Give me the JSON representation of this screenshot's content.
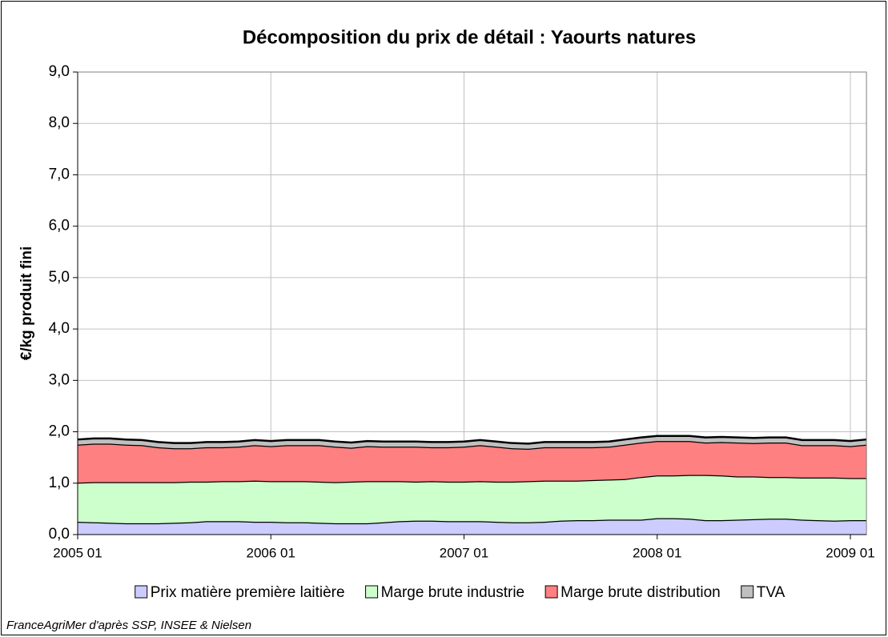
{
  "chart_data": {
    "type": "stacked_area",
    "title": "Décomposition du prix de détail : Yaourts natures",
    "y_label": "€/kg produit fini",
    "source": "FranceAgriMer d'après SSP, INSEE & Nielsen",
    "categories": [
      "2005 01",
      null,
      null,
      null,
      null,
      null,
      null,
      null,
      null,
      null,
      null,
      null,
      "2006 01",
      null,
      null,
      null,
      null,
      null,
      null,
      null,
      null,
      null,
      null,
      null,
      "2007 01",
      null,
      null,
      null,
      null,
      null,
      null,
      null,
      null,
      null,
      null,
      null,
      "2008 01",
      null,
      null,
      null,
      null,
      null,
      null,
      null,
      null,
      null,
      null,
      null,
      "2009 01",
      null
    ],
    "series": [
      {
        "name": "Prix matière première laitière",
        "color": "#ccccff",
        "values": [
          0.25,
          0.24,
          0.23,
          0.22,
          0.22,
          0.22,
          0.23,
          0.24,
          0.26,
          0.26,
          0.26,
          0.25,
          0.25,
          0.24,
          0.24,
          0.23,
          0.22,
          0.22,
          0.22,
          0.24,
          0.26,
          0.27,
          0.27,
          0.26,
          0.26,
          0.26,
          0.25,
          0.24,
          0.24,
          0.25,
          0.27,
          0.28,
          0.28,
          0.29,
          0.29,
          0.29,
          0.32,
          0.32,
          0.31,
          0.28,
          0.28,
          0.29,
          0.3,
          0.31,
          0.31,
          0.29,
          0.28,
          0.27,
          0.28,
          0.28
        ]
      },
      {
        "name": "Marge brute industrie",
        "color": "#ccffcc",
        "values": [
          0.76,
          0.78,
          0.79,
          0.8,
          0.8,
          0.8,
          0.79,
          0.79,
          0.77,
          0.78,
          0.78,
          0.8,
          0.79,
          0.8,
          0.8,
          0.8,
          0.8,
          0.81,
          0.82,
          0.8,
          0.78,
          0.76,
          0.77,
          0.77,
          0.77,
          0.78,
          0.78,
          0.79,
          0.8,
          0.8,
          0.78,
          0.77,
          0.78,
          0.78,
          0.79,
          0.83,
          0.83,
          0.83,
          0.85,
          0.88,
          0.87,
          0.84,
          0.83,
          0.81,
          0.81,
          0.82,
          0.83,
          0.84,
          0.82,
          0.82
        ]
      },
      {
        "name": "Marge brute distribution",
        "color": "#ff8080",
        "values": [
          0.74,
          0.75,
          0.75,
          0.73,
          0.72,
          0.68,
          0.66,
          0.65,
          0.67,
          0.66,
          0.67,
          0.69,
          0.68,
          0.7,
          0.7,
          0.71,
          0.69,
          0.66,
          0.68,
          0.67,
          0.67,
          0.68,
          0.66,
          0.67,
          0.68,
          0.7,
          0.68,
          0.65,
          0.63,
          0.65,
          0.65,
          0.65,
          0.64,
          0.64,
          0.67,
          0.67,
          0.67,
          0.67,
          0.66,
          0.63,
          0.65,
          0.66,
          0.65,
          0.67,
          0.67,
          0.63,
          0.63,
          0.63,
          0.62,
          0.65
        ]
      },
      {
        "name": "TVA",
        "color": "#c0c0c0",
        "values": [
          0.1,
          0.1,
          0.1,
          0.1,
          0.1,
          0.1,
          0.1,
          0.1,
          0.1,
          0.1,
          0.1,
          0.1,
          0.1,
          0.1,
          0.1,
          0.1,
          0.1,
          0.1,
          0.1,
          0.1,
          0.1,
          0.1,
          0.1,
          0.1,
          0.1,
          0.1,
          0.1,
          0.1,
          0.1,
          0.1,
          0.1,
          0.1,
          0.1,
          0.1,
          0.1,
          0.1,
          0.1,
          0.1,
          0.1,
          0.1,
          0.1,
          0.1,
          0.1,
          0.1,
          0.1,
          0.1,
          0.1,
          0.1,
          0.1,
          0.1
        ]
      }
    ],
    "ylim": [
      0,
      9
    ],
    "yticks": [
      {
        "value": 0,
        "label": "0,0"
      },
      {
        "value": 1,
        "label": "1,0"
      },
      {
        "value": 2,
        "label": "2,0"
      },
      {
        "value": 3,
        "label": "3,0"
      },
      {
        "value": 4,
        "label": "4,0"
      },
      {
        "value": 5,
        "label": "5,0"
      },
      {
        "value": 6,
        "label": "6,0"
      },
      {
        "value": 7,
        "label": "7,0"
      },
      {
        "value": 8,
        "label": "8,0"
      },
      {
        "value": 9,
        "label": "9,0"
      }
    ],
    "grid": true,
    "legend": "bottom"
  }
}
